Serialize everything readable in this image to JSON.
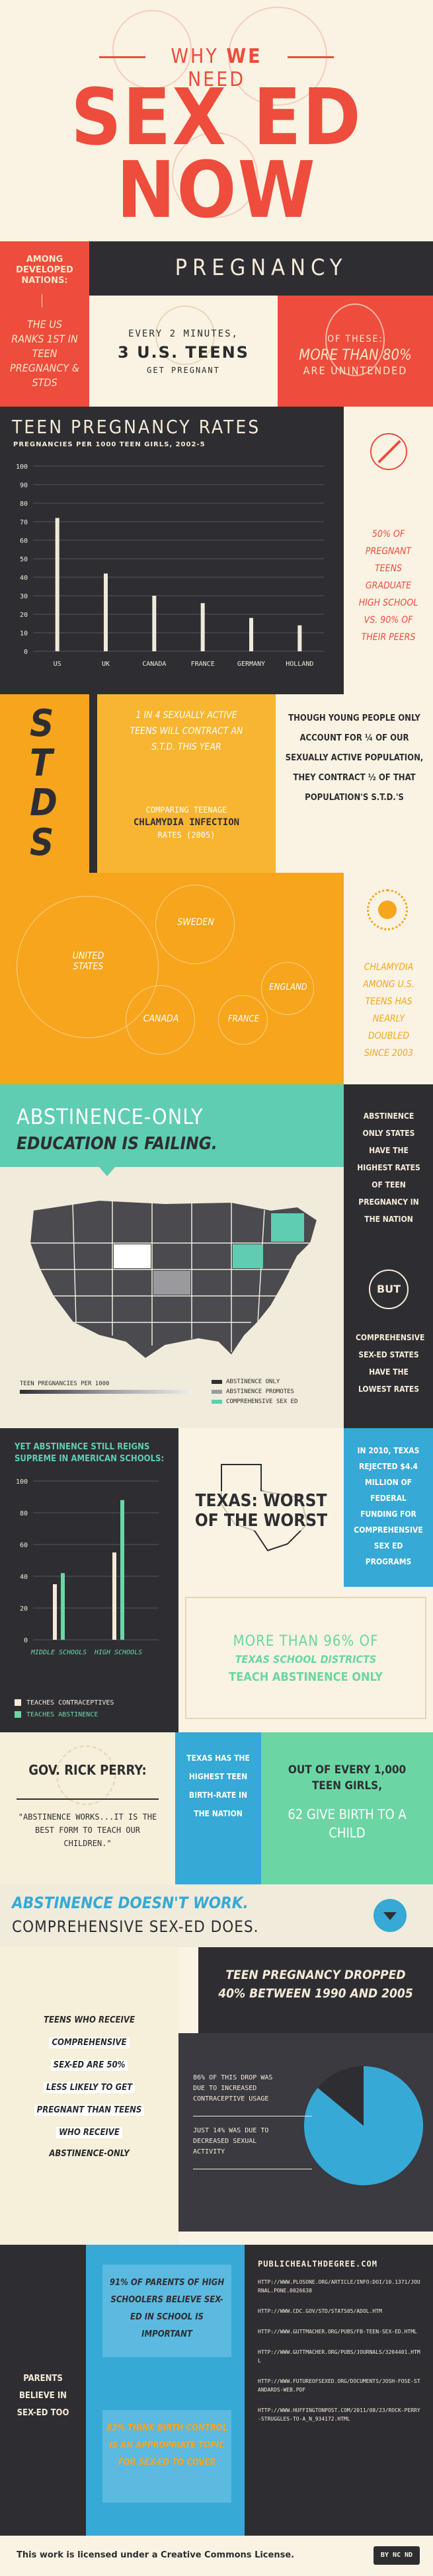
{
  "header": {
    "sub_prefix": "WHY",
    "sub_we": "WE",
    "sub_suffix": "NEED",
    "line1": "SEX ED",
    "line2": "NOW"
  },
  "pregnancy": {
    "among_developed": "AMONG DEVELOPED NATIONS:",
    "us_ranks": "THE US RANKS 1ST IN TEEN PREGNANCY & STDS",
    "title": "PREGNANCY",
    "every_two_minutes": "EVERY 2 MINUTES,",
    "three_teens": "3 U.S. TEENS",
    "get_pregnant": "GET PREGNANT",
    "of_these": "OF THESE:",
    "more_than": "MORE THAN 80%",
    "unintended": "ARE UNINTENDED"
  },
  "rates": {
    "title": "TEEN PREGNANCY RATES",
    "subtitle": "PREGNANCIES PER 1000 TEEN GIRLS, 2002-5",
    "side_text": "50% OF PREGNANT TEENS GRADUATE HIGH SCHOOL VS. 90% OF THEIR PEERS"
  },
  "chart_data": {
    "type": "bar",
    "title": "TEEN PREGNANCY RATES",
    "subtitle": "PREGNANCIES PER 1000 TEEN GIRLS, 2002-5",
    "categories": [
      "US",
      "UK",
      "CANADA",
      "FRANCE",
      "GERMANY",
      "HOLLAND"
    ],
    "values": [
      72,
      42,
      30,
      26,
      18,
      14
    ],
    "ylim": [
      0,
      100
    ],
    "yticks": [
      "100",
      "90",
      "80",
      "70",
      "60",
      "50",
      "40",
      "30",
      "20",
      "10",
      "0"
    ]
  },
  "stds": {
    "letters": [
      "S",
      "T",
      "D",
      "S"
    ],
    "one_in_four": "1 IN 4 SEXUALLY ACTIVE TEENS WILL CONTRACT AN S.T.D. THIS YEAR",
    "comparing": "COMPARING TEENAGE",
    "chlamydia_rates": "CHLAMYDIA INFECTION",
    "rates_year": "RATES (2005)",
    "young_people": "THOUGH YOUNG PEOPLE ONLY ACCOUNT FOR ¼ OF OUR SEXUALLY ACTIVE POPULATION, THEY CONTRACT ½ OF THAT POPULATION'S S.T.D.'S",
    "bubbles": [
      "UNITED STATES",
      "SWEDEN",
      "ENGLAND",
      "CANADA",
      "FRANCE"
    ],
    "chlamydia_side": "CHLAMYDIA AMONG U.S. TEENS HAS NEARLY DOUBLED SINCE 2003"
  },
  "abstinence": {
    "title_line1": "ABSTINENCE-ONLY",
    "title_line2": "EDUCATION IS FAILING.",
    "side_top": "ABSTINENCE ONLY STATES HAVE THE HIGHEST RATES OF TEEN PREGNANCY IN THE NATION",
    "but": "BUT",
    "side_bottom": "COMPREHENSIVE SEX-ED STATES HAVE THE LOWEST RATES",
    "map_legend_title": "TEEN PREGNANCIES PER 1000",
    "legend": [
      "ABSTINENCE ONLY",
      "ABSTINENCE PROMOTES",
      "COMPREHENSIVE SEX ED"
    ]
  },
  "schools": {
    "title": "YET ABSTINENCE STILL REIGNS SUPREME IN AMERICAN SCHOOLS:",
    "yticks": [
      "100",
      "80",
      "60",
      "40",
      "20",
      "0"
    ],
    "groups": [
      "MIDDLE SCHOOLS",
      "HIGH SCHOOLS"
    ],
    "legend1": "TEACHES CONTRACEPTIVES",
    "legend2": "TEACHES ABSTINENCE",
    "texas_title": "TEXAS: WORST OF THE WORST",
    "texas_side": "IN 2010, TEXAS REJECTED $4.4 MILLION OF FEDERAL FUNDING FOR COMPREHENSIVE SEX ED PROGRAMS",
    "more_than": "MORE THAN 96% OF",
    "texas_districts": "TEXAS SCHOOL DISTRICTS",
    "teach_abstinence": "TEACH ABSTINENCE ONLY"
  },
  "perry": {
    "gov": "GOV. RICK PERRY:",
    "quote": "\"ABSTINENCE WORKS...IT IS THE BEST FORM TO TEACH OUR CHILDREN.\"",
    "texas_highest": "TEXAS HAS THE HIGHEST TEEN BIRTH-RATE IN THE NATION",
    "out_of": "OUT OF EVERY 1,000 TEEN GIRLS,",
    "sixty_two": "62 GIVE BIRTH TO A CHILD"
  },
  "doesnt": {
    "line1": "ABSTINENCE DOESN'T WORK.",
    "line2": "COMPREHENSIVE SEX-ED DOES."
  },
  "dropped": {
    "left_text": [
      "TEENS WHO RECEIVE",
      "COMPREHENSIVE",
      "SEX-ED ARE 50%",
      "LESS LIKELY TO GET",
      "PREGNANT THAN TEENS",
      "WHO RECEIVE",
      "ABSTINENCE-ONLY"
    ],
    "title": "TEEN PREGNANCY DROPPED 40% BETWEEN 1990 AND 2005",
    "pct86": "86% OF THIS DROP WAS DUE TO INCREASED CONTRACEPTIVE USAGE",
    "pct14": "JUST 14% WAS DUE TO DECREASED SEXUAL ACTIVITY",
    "pie_values": [
      86,
      14
    ]
  },
  "parents": {
    "left": "PARENTS BELIEVE IN SEX-ED TOO",
    "stat1": "91% OF PARENTS OF HIGH SCHOOLERS BELIEVE SEX-ED IN SCHOOL IS IMPORTANT",
    "stat2": "83% THINK BIRTH CONTROL IS AN APPROPRIATE TOPIC FOR SEX-ED TO COVER",
    "sources_title": "PUBLICHEALTHDEGREE.COM",
    "sources": [
      "HTTP://WWW.PLOSONE.ORG/ARTICLE/INFO:DOI/10.1371/JOURNAL.PONE.0026638",
      "HTTP://WWW.CDC.GOV/STD/STATS05/ADOL.HTM",
      "HTTP://WWW.GUTTMACHER.ORG/PUBS/FB-TEEN-SEX-ED.HTML",
      "HTTP://WWW.GUTTMACHER.ORG/PUBS/JOURNALS/3204401.HTML",
      "HTTP://WWW.FUTUREOFSEXED.ORG/DOCUMENTS/JOSH-FOSE-STANDARDS-WEB.PDF",
      "HTTP://WWW.HUFFINGTONPOST.COM/2011/08/23/ROCK-PERRY-STRUGGLES-TO-A_N_934172.HTML"
    ]
  },
  "footer": {
    "license": "This work is licensed under a Creative Commons License.",
    "badge": "BY NC ND"
  },
  "colors": {
    "red": "#EE4C3C",
    "orange": "#F7A51D",
    "teal": "#5ECDB2",
    "dark": "#2E2E32",
    "cream": "#FAF3E3",
    "green": "#6BD6A4",
    "blue": "#36A9D6"
  }
}
